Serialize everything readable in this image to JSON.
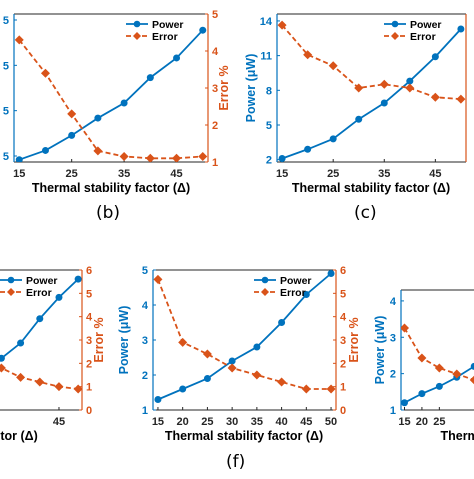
{
  "captions": {
    "b": "(b)",
    "c": "(c)",
    "f": "(f)"
  },
  "colors": {
    "power": "#0072BD",
    "error": "#D95319",
    "axis": "#000000"
  },
  "chart_data": [
    {
      "id": "b",
      "type": "line",
      "xlabel": "Thermal stability factor (Δ)",
      "ylabel_left": "",
      "ylabel_right": "Error %",
      "x": [
        15,
        20,
        25,
        30,
        35,
        40,
        45,
        50
      ],
      "xticks": [
        "15",
        "25",
        "35",
        "45"
      ],
      "xlim": [
        14,
        51
      ],
      "ylim_left": [
        1.8,
        14.6
      ],
      "ylim_right": [
        1,
        5
      ],
      "yticks_left": [
        "5",
        "5",
        "5",
        "5"
      ],
      "yticks_right": [
        "1",
        "2",
        "3",
        "4",
        "5"
      ],
      "legend": "top-right",
      "legend_entries": [
        "Power",
        "Error"
      ],
      "series": [
        {
          "name": "Power",
          "axis": "left",
          "style": "solid-circle",
          "values": [
            2.0,
            2.8,
            4.1,
            5.6,
            6.9,
            9.1,
            10.8,
            13.2
          ]
        },
        {
          "name": "Error",
          "axis": "right",
          "style": "dashed-diamond",
          "values": [
            4.3,
            3.4,
            2.3,
            1.3,
            1.15,
            1.1,
            1.1,
            1.15
          ]
        }
      ]
    },
    {
      "id": "c",
      "type": "line",
      "xlabel": "Thermal stability factor (Δ)",
      "ylabel_left": "Power (μW)",
      "ylabel_right": "",
      "x": [
        15,
        20,
        25,
        30,
        35,
        40,
        45,
        50
      ],
      "xticks": [
        "15",
        "25",
        "35",
        "45"
      ],
      "xlim": [
        14,
        51
      ],
      "ylim_left": [
        1.8,
        14.6
      ],
      "ylim_right": [
        1,
        5
      ],
      "yticks_left": [
        "2",
        "5",
        "8",
        "11",
        "14"
      ],
      "yticks_right": [],
      "legend": "top-right",
      "legend_entries": [
        "Power",
        "Error"
      ],
      "series": [
        {
          "name": "Power",
          "axis": "left",
          "style": "solid-circle",
          "values": [
            2.1,
            2.9,
            3.8,
            5.5,
            6.9,
            8.8,
            10.9,
            13.3
          ]
        },
        {
          "name": "Error",
          "axis": "right",
          "style": "dashed-diamond",
          "values": [
            4.7,
            3.9,
            3.6,
            3.0,
            3.1,
            3.0,
            2.75,
            2.7
          ]
        }
      ]
    },
    {
      "id": "e",
      "type": "line",
      "xlabel": "factor (Δ)",
      "ylabel_left": "",
      "ylabel_right": "Error %",
      "x": [
        15,
        20,
        25,
        30,
        35,
        40,
        45,
        50
      ],
      "xticks": [
        "45"
      ],
      "xlim": [
        14,
        51
      ],
      "ylim_left": [
        1,
        5.6
      ],
      "ylim_right": [
        0,
        6
      ],
      "yticks_left": [],
      "yticks_right": [
        "0",
        "1",
        "2",
        "3",
        "4",
        "5",
        "6"
      ],
      "legend": "top-right",
      "legend_entries": [
        "Power",
        "Error"
      ],
      "series": [
        {
          "name": "Power",
          "axis": "left",
          "style": "solid-circle",
          "values": [
            1.2,
            1.6,
            2.1,
            2.7,
            3.2,
            4.0,
            4.7,
            5.3
          ]
        },
        {
          "name": "Error",
          "axis": "right",
          "style": "dashed-diamond",
          "values": [
            5.5,
            3.3,
            2.2,
            1.8,
            1.4,
            1.2,
            1.0,
            0.9
          ]
        }
      ]
    },
    {
      "id": "f",
      "type": "line",
      "xlabel": "Thermal stability factor (Δ)",
      "ylabel_left": "Power (μW)",
      "ylabel_right": "Error %",
      "x": [
        15,
        20,
        25,
        30,
        35,
        40,
        45,
        50
      ],
      "xticks": [
        "15",
        "20",
        "25",
        "30",
        "35",
        "40",
        "45",
        "50"
      ],
      "xlim": [
        14,
        51
      ],
      "ylim_left": [
        1,
        5
      ],
      "ylim_right": [
        0,
        6
      ],
      "yticks_left": [
        "1",
        "2",
        "3",
        "4",
        "5"
      ],
      "yticks_right": [
        "0",
        "1",
        "2",
        "3",
        "4",
        "5",
        "6"
      ],
      "legend": "top-right",
      "legend_entries": [
        "Power",
        "Error"
      ],
      "series": [
        {
          "name": "Power",
          "axis": "left",
          "style": "solid-circle",
          "values": [
            1.3,
            1.6,
            1.9,
            2.4,
            2.8,
            3.5,
            4.3,
            4.9
          ]
        },
        {
          "name": "Error",
          "axis": "right",
          "style": "dashed-diamond",
          "values": [
            5.6,
            2.9,
            2.4,
            1.8,
            1.5,
            1.2,
            0.9,
            0.9
          ]
        }
      ]
    },
    {
      "id": "g",
      "type": "line",
      "xlabel": "Thermal s",
      "ylabel_left": "Power (μW)",
      "ylabel_right": "",
      "x": [
        15,
        20,
        25,
        30,
        35,
        40,
        45,
        50
      ],
      "xticks": [
        "15",
        "20",
        "25"
      ],
      "xlim": [
        14,
        51
      ],
      "ylim_left": [
        1,
        4.3
      ],
      "ylim_right": [
        0,
        6
      ],
      "yticks_left": [
        "1",
        "2",
        "3",
        "4"
      ],
      "yticks_right": [],
      "legend": "top-right",
      "legend_entries": [],
      "series": [
        {
          "name": "Power",
          "axis": "left",
          "style": "solid-circle",
          "values": [
            1.2,
            1.45,
            1.65,
            1.9,
            2.2,
            2.5,
            2.8,
            3.1
          ]
        },
        {
          "name": "Error",
          "axis": "right",
          "style": "dashed-diamond",
          "values": [
            4.1,
            2.6,
            2.1,
            1.8,
            1.5,
            1.3,
            1.1,
            1.0
          ]
        }
      ]
    }
  ]
}
